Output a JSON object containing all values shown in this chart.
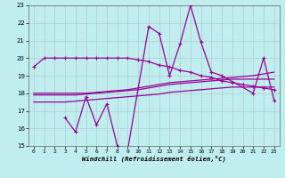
{
  "line_top_x": [
    0,
    1,
    2,
    3,
    4,
    5,
    6,
    7,
    8,
    9,
    10,
    11,
    12,
    13,
    14,
    15,
    16,
    17,
    18,
    19,
    20,
    21,
    22,
    23
  ],
  "line_top_y": [
    19.5,
    20.0,
    20.0,
    20.0,
    20.0,
    20.0,
    20.0,
    20.0,
    20.0,
    20.0,
    19.9,
    19.8,
    19.6,
    19.5,
    19.3,
    19.2,
    19.0,
    18.9,
    18.7,
    18.6,
    18.5,
    18.4,
    18.3,
    18.2
  ],
  "line_zz_x": [
    3,
    4,
    5,
    6,
    7,
    8,
    9,
    11,
    12,
    13,
    14,
    15,
    16,
    17,
    18,
    21,
    22,
    23
  ],
  "line_zz_y": [
    16.6,
    15.8,
    17.8,
    16.2,
    17.4,
    15.0,
    14.8,
    21.8,
    21.4,
    19.0,
    20.8,
    23.0,
    20.9,
    19.2,
    19.0,
    18.0,
    20.0,
    17.6
  ],
  "sm1_x": [
    0,
    1,
    2,
    3,
    4,
    5,
    6,
    7,
    8,
    9,
    10,
    11,
    12,
    13,
    14,
    15,
    16,
    17,
    18,
    19,
    20,
    21,
    22,
    23
  ],
  "sm1_y": [
    18.0,
    18.0,
    18.0,
    18.0,
    18.0,
    18.0,
    18.05,
    18.1,
    18.15,
    18.2,
    18.3,
    18.4,
    18.5,
    18.6,
    18.65,
    18.7,
    18.75,
    18.8,
    18.85,
    18.9,
    18.95,
    19.0,
    19.1,
    19.2
  ],
  "sm2_x": [
    0,
    1,
    2,
    3,
    4,
    5,
    6,
    7,
    8,
    9,
    10,
    11,
    12,
    13,
    14,
    15,
    16,
    17,
    18,
    19,
    20,
    21,
    22,
    23
  ],
  "sm2_y": [
    17.9,
    17.9,
    17.9,
    17.9,
    17.9,
    17.95,
    18.0,
    18.05,
    18.1,
    18.15,
    18.2,
    18.3,
    18.4,
    18.5,
    18.55,
    18.6,
    18.65,
    18.7,
    18.75,
    18.8,
    18.8,
    18.8,
    18.8,
    18.8
  ],
  "sm3_x": [
    0,
    1,
    2,
    3,
    4,
    5,
    6,
    7,
    8,
    9,
    10,
    11,
    12,
    13,
    14,
    15,
    16,
    17,
    18,
    19,
    20,
    21,
    22,
    23
  ],
  "sm3_y": [
    17.5,
    17.5,
    17.5,
    17.5,
    17.55,
    17.6,
    17.65,
    17.7,
    17.75,
    17.8,
    17.85,
    17.9,
    17.95,
    18.05,
    18.1,
    18.15,
    18.2,
    18.25,
    18.3,
    18.35,
    18.35,
    18.35,
    18.35,
    18.35
  ],
  "ylim": [
    15,
    23
  ],
  "xlim_min": -0.5,
  "xlim_max": 23.5,
  "yticks": [
    15,
    16,
    17,
    18,
    19,
    20,
    21,
    22,
    23
  ],
  "xticks": [
    0,
    1,
    2,
    3,
    4,
    5,
    6,
    7,
    8,
    9,
    10,
    11,
    12,
    13,
    14,
    15,
    16,
    17,
    18,
    19,
    20,
    21,
    22,
    23
  ],
  "xlabel": "Windchill (Refroidissement éolien,°C)",
  "line_color": "#990099",
  "bg_color": "#c0eeee",
  "grid_color": "#b0cccc"
}
